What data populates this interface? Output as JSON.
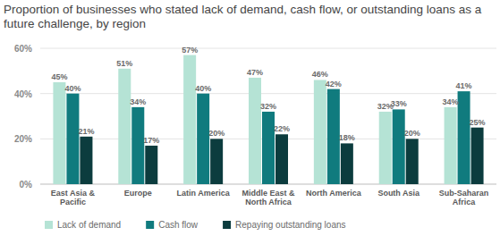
{
  "chart_data": {
    "type": "bar",
    "title": "Proportion of businesses who stated lack of demand, cash flow, or outstanding loans as a future challenge, by region",
    "categories": [
      "East Asia & Pacific",
      "Europe",
      "Latin America",
      "Middle East & North Africa",
      "North America",
      "South Asia",
      "Sub-Saharan Africa"
    ],
    "series": [
      {
        "name": "Lack of demand",
        "color": "#b5e3d5",
        "values": [
          45,
          51,
          57,
          47,
          46,
          32,
          34
        ],
        "value_labels": [
          "45%",
          "51%",
          "57%",
          "47%",
          "46%",
          "32%",
          "34%"
        ]
      },
      {
        "name": "Cash flow",
        "color": "#107b7e",
        "values": [
          40,
          34,
          40,
          32,
          42,
          33,
          41
        ],
        "value_labels": [
          "40%",
          "34%",
          "40%",
          "32%",
          "42%",
          "33%",
          "41%"
        ]
      },
      {
        "name": "Repaying outstanding loans",
        "color": "#0c3c3e",
        "values": [
          21,
          17,
          20,
          22,
          18,
          20,
          25
        ],
        "value_labels": [
          "21%",
          "17%",
          "20%",
          "22%",
          "18%",
          "20%",
          "25%"
        ]
      }
    ],
    "ylim": [
      0,
      60
    ],
    "yticks": [
      {
        "value": 0,
        "label": "0%"
      },
      {
        "value": 20,
        "label": "20%"
      },
      {
        "value": 40,
        "label": "40%"
      },
      {
        "value": 60,
        "label": "60%"
      }
    ],
    "grid": true,
    "legend": "bottom",
    "data_labels": true
  }
}
